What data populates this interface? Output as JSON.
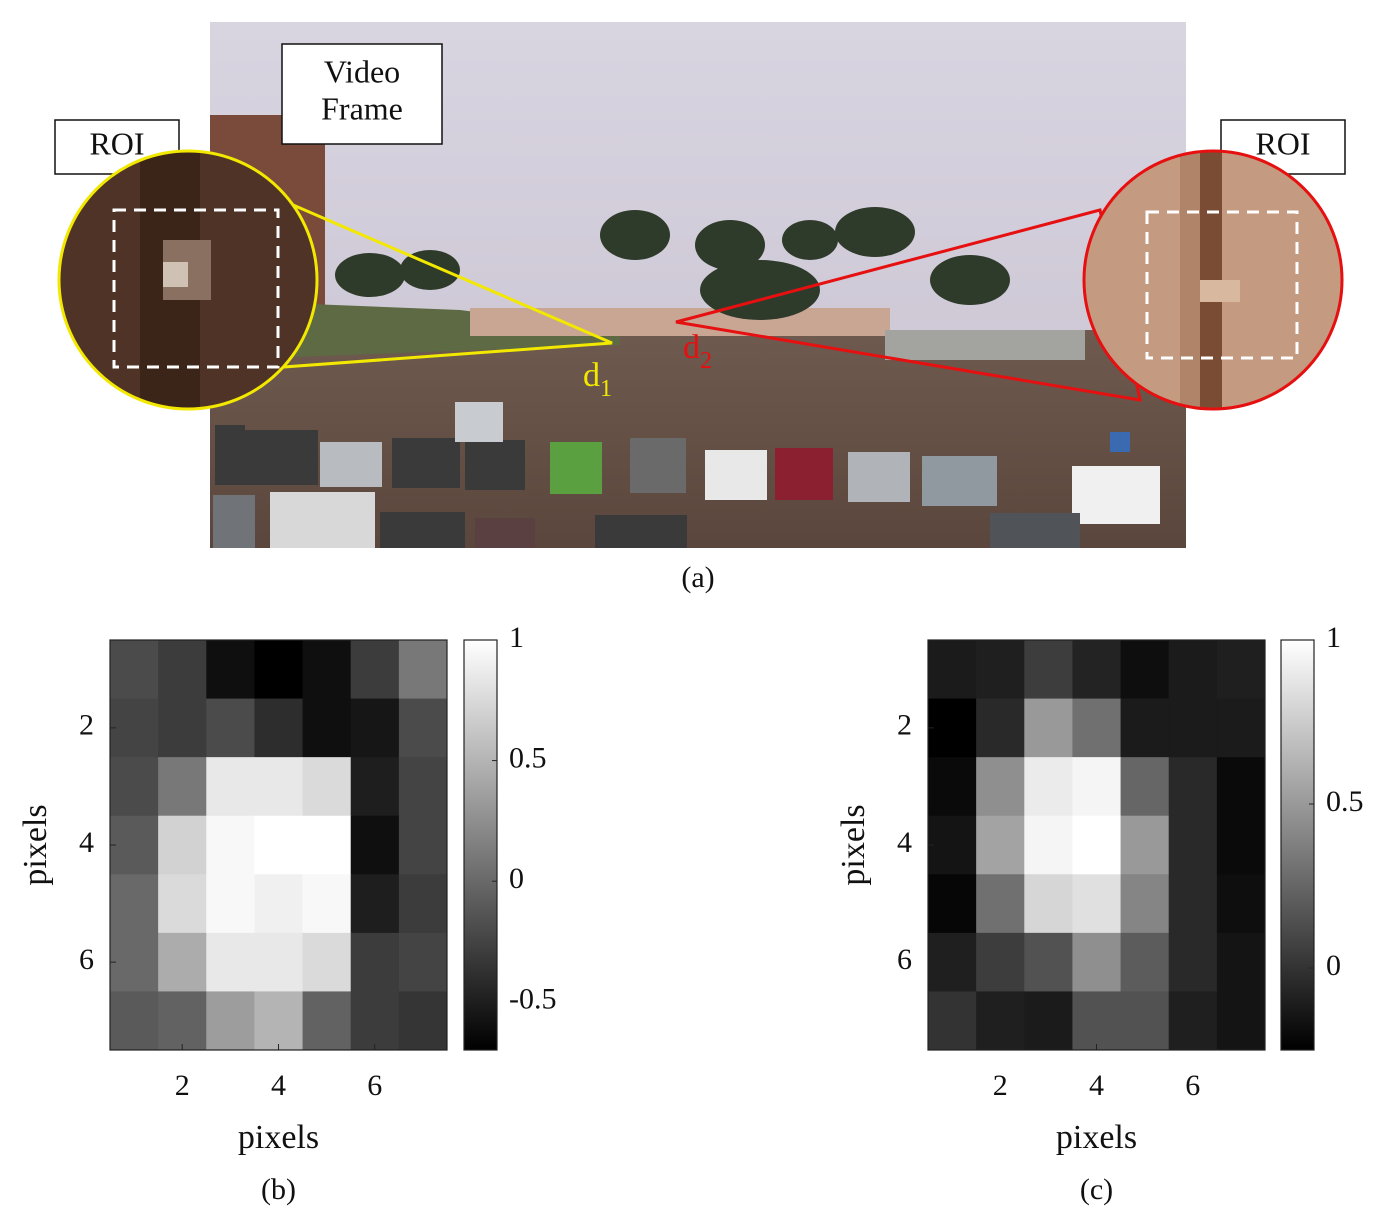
{
  "figure_a": {
    "video_frame": [
      "Video",
      "Frame"
    ],
    "roi_left": "ROI",
    "roi_right": "ROI",
    "d1": {
      "base": "d",
      "sub": "1"
    },
    "d2": {
      "base": "d",
      "sub": "2"
    },
    "caption": "(a)"
  },
  "chart_data": [
    {
      "type": "heatmap",
      "caption": "(b)",
      "xlabel": "pixels",
      "ylabel": "pixels",
      "colormap": "gray",
      "values": [
        [
          -0.2,
          -0.3,
          -0.6,
          -0.7,
          -0.6,
          -0.3,
          0.1
        ],
        [
          -0.25,
          -0.3,
          -0.2,
          -0.4,
          -0.6,
          -0.55,
          -0.2
        ],
        [
          -0.2,
          0.1,
          0.85,
          0.85,
          0.75,
          -0.5,
          -0.25
        ],
        [
          -0.1,
          0.7,
          0.95,
          1.0,
          1.0,
          -0.6,
          -0.25
        ],
        [
          0.0,
          0.75,
          0.95,
          0.9,
          0.95,
          -0.5,
          -0.3
        ],
        [
          0.0,
          0.45,
          0.85,
          0.85,
          0.75,
          -0.3,
          -0.25
        ],
        [
          -0.1,
          -0.05,
          0.35,
          0.5,
          -0.05,
          -0.3,
          -0.35
        ]
      ],
      "xlim": [
        0.5,
        7.5
      ],
      "ylim": [
        0.5,
        7.5
      ],
      "y_reversed": true,
      "xticks": [
        2,
        4,
        6
      ],
      "yticks": [
        2,
        4,
        6
      ],
      "clim": [
        -0.7,
        1
      ],
      "colorbar_ticks": [
        -0.5,
        0,
        0.5,
        1
      ]
    },
    {
      "type": "heatmap",
      "caption": "(c)",
      "xlabel": "pixels",
      "ylabel": "pixels",
      "colormap": "gray",
      "values": [
        [
          -0.12,
          -0.1,
          0.05,
          -0.08,
          -0.18,
          -0.12,
          -0.1
        ],
        [
          -0.25,
          -0.05,
          0.5,
          0.3,
          -0.12,
          -0.12,
          -0.12
        ],
        [
          -0.2,
          0.45,
          0.9,
          0.95,
          0.25,
          -0.05,
          -0.2
        ],
        [
          -0.15,
          0.55,
          0.95,
          1.0,
          0.5,
          -0.05,
          -0.2
        ],
        [
          -0.22,
          0.3,
          0.8,
          0.85,
          0.4,
          -0.05,
          -0.18
        ],
        [
          -0.1,
          0.05,
          0.15,
          0.45,
          0.2,
          -0.05,
          -0.15
        ],
        [
          0.0,
          -0.1,
          -0.12,
          0.15,
          0.15,
          -0.1,
          -0.15
        ]
      ],
      "xlim": [
        0.5,
        7.5
      ],
      "ylim": [
        0.5,
        7.5
      ],
      "y_reversed": true,
      "xticks": [
        2,
        4,
        6
      ],
      "yticks": [
        2,
        4,
        6
      ],
      "clim": [
        -0.25,
        1
      ],
      "colorbar_ticks": [
        0,
        0.5,
        1
      ]
    }
  ]
}
